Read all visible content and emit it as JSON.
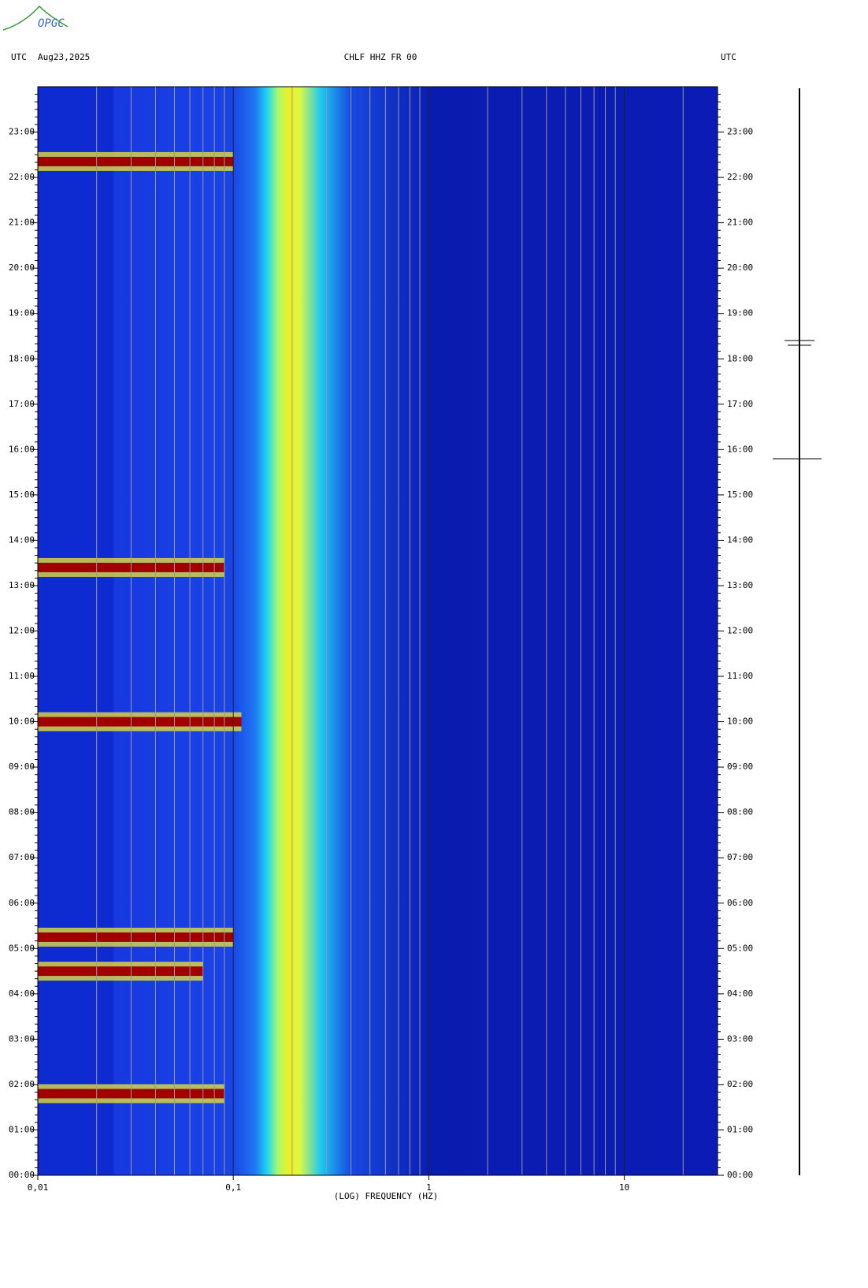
{
  "chart_data": {
    "type": "spectrogram",
    "logo": "OPGC",
    "tz_left": "UTC",
    "date": "Aug23,2025",
    "title": "CHLF HHZ FR 00",
    "tz_right": "UTC",
    "xlabel": "(LOG) FREQUENCY (HZ)",
    "log_x": true,
    "xlim": [
      0.01,
      30
    ],
    "xticks": [
      {
        "value": 0.01,
        "label": "0,01"
      },
      {
        "value": 0.1,
        "label": "0,1"
      },
      1,
      10
    ],
    "xminor": [
      0.02,
      0.03,
      0.04,
      0.05,
      0.06,
      0.07,
      0.08,
      0.09,
      0.2,
      0.3,
      0.4,
      0.5,
      0.6,
      0.7,
      0.8,
      0.9,
      2,
      3,
      4,
      5,
      6,
      7,
      8,
      9,
      20
    ],
    "ylim": [
      0,
      24
    ],
    "yticks": [
      {
        "value": 0,
        "label": "00:00"
      },
      {
        "value": 1,
        "label": "01:00"
      },
      {
        "value": 2,
        "label": "02:00"
      },
      {
        "value": 3,
        "label": "03:00"
      },
      {
        "value": 4,
        "label": "04:00"
      },
      {
        "value": 5,
        "label": "05:00"
      },
      {
        "value": 6,
        "label": "06:00"
      },
      {
        "value": 7,
        "label": "07:00"
      },
      {
        "value": 8,
        "label": "08:00"
      },
      {
        "value": 9,
        "label": "09:00"
      },
      {
        "value": 10,
        "label": "10:00"
      },
      {
        "value": 11,
        "label": "11:00"
      },
      {
        "value": 12,
        "label": "12:00"
      },
      {
        "value": 13,
        "label": "13:00"
      },
      {
        "value": 14,
        "label": "14:00"
      },
      {
        "value": 15,
        "label": "15:00"
      },
      {
        "value": 16,
        "label": "16:00"
      },
      {
        "value": 17,
        "label": "17:00"
      },
      {
        "value": 18,
        "label": "18:00"
      },
      {
        "value": 19,
        "label": "19:00"
      },
      {
        "value": 20,
        "label": "20:00"
      },
      {
        "value": 21,
        "label": "21:00"
      },
      {
        "value": 22,
        "label": "22:00"
      },
      {
        "value": 23,
        "label": "23:00"
      }
    ],
    "events": [
      {
        "time": 22.35,
        "fmax": 0.1
      },
      {
        "time": 13.4,
        "fmax": 0.09
      },
      {
        "time": 10.0,
        "fmax": 0.11
      },
      {
        "time": 5.25,
        "fmax": 0.1
      },
      {
        "time": 4.5,
        "fmax": 0.07
      },
      {
        "time": 1.8,
        "fmax": 0.09
      }
    ]
  }
}
